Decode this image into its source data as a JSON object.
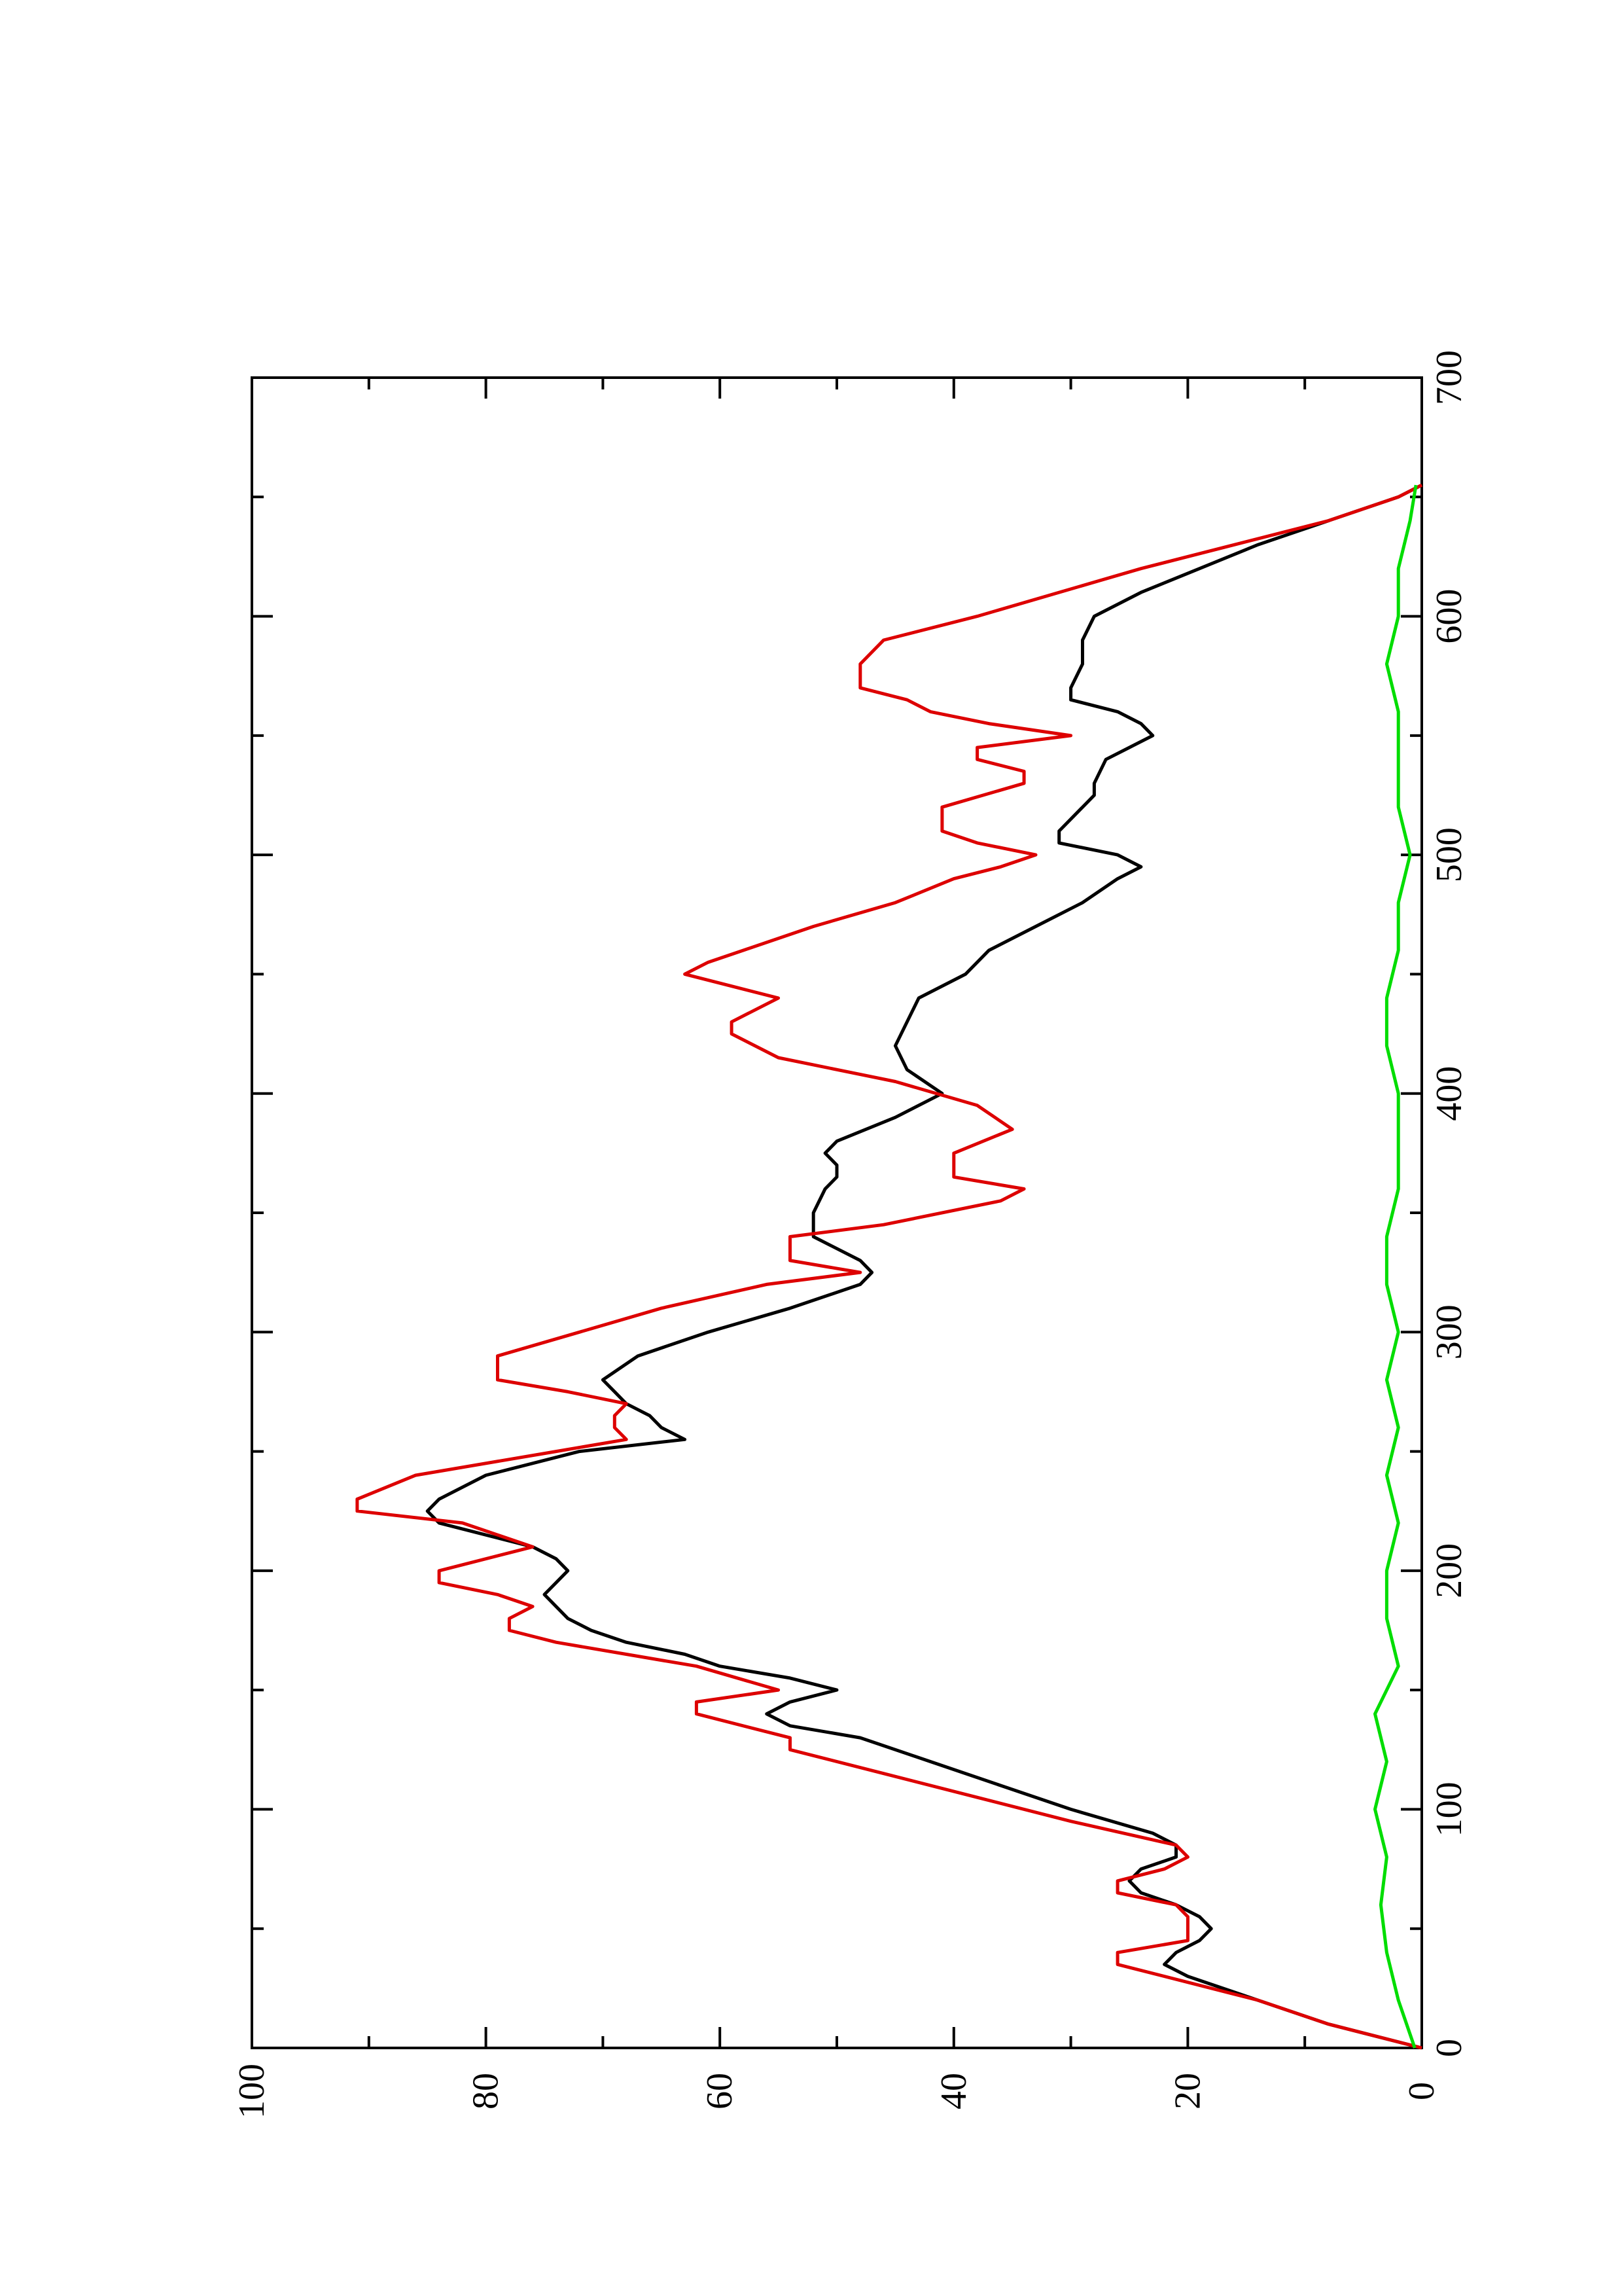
{
  "chart_data": {
    "type": "line",
    "orientation": "rotated 90° counter-clockwise",
    "title": "",
    "xlabel": "",
    "ylabel": "",
    "xlim": [
      0,
      700
    ],
    "ylim": [
      0,
      100
    ],
    "x_ticks": [
      0,
      100,
      200,
      300,
      400,
      500,
      600,
      700
    ],
    "x_tick_labels": [
      "0",
      "100",
      "200",
      "300",
      "400",
      "500",
      "600",
      "700"
    ],
    "y_ticks": [
      0,
      20,
      40,
      60,
      80,
      100
    ],
    "y_tick_labels": [
      "0",
      "20",
      "40",
      "60",
      "80",
      "100"
    ],
    "grid": false,
    "legend": "none",
    "series": [
      {
        "color": "#000000",
        "x": [
          0,
          10,
          20,
          30,
          35,
          40,
          45,
          50,
          55,
          60,
          65,
          70,
          75,
          80,
          85,
          90,
          100,
          110,
          120,
          130,
          135,
          140,
          145,
          150,
          155,
          160,
          165,
          170,
          175,
          180,
          185,
          190,
          195,
          200,
          205,
          210,
          215,
          220,
          225,
          230,
          240,
          250,
          255,
          260,
          265,
          270,
          275,
          280,
          290,
          300,
          310,
          320,
          325,
          330,
          335,
          340,
          350,
          360,
          365,
          370,
          375,
          380,
          390,
          400,
          410,
          420,
          430,
          440,
          450,
          460,
          470,
          480,
          490,
          495,
          500,
          505,
          510,
          520,
          525,
          530,
          540,
          545,
          550,
          555,
          560,
          565,
          570,
          580,
          590,
          600,
          610,
          620,
          630,
          640,
          650,
          655
        ],
        "values": [
          0,
          8,
          14,
          20,
          22,
          21,
          19,
          18,
          19,
          21,
          24,
          25,
          24,
          21,
          21,
          23,
          30,
          36,
          42,
          48,
          54,
          56,
          54,
          50,
          54,
          60,
          63,
          68,
          71,
          73,
          74,
          75,
          74,
          73,
          74,
          76,
          80,
          84,
          85,
          84,
          80,
          72,
          63,
          65,
          66,
          68,
          69,
          70,
          67,
          61,
          54,
          48,
          47,
          48,
          50,
          52,
          52,
          51,
          50,
          50,
          51,
          50,
          45,
          41,
          44,
          45,
          44,
          43,
          39,
          37,
          33,
          29,
          26,
          24,
          26,
          31,
          31,
          29,
          28,
          28,
          27,
          25,
          23,
          24,
          26,
          30,
          30,
          29,
          29,
          28,
          24,
          19,
          14,
          8,
          2,
          0
        ]
      },
      {
        "color": "#dd0000",
        "x": [
          0,
          10,
          20,
          35,
          40,
          45,
          55,
          60,
          65,
          70,
          75,
          80,
          85,
          95,
          105,
          115,
          125,
          130,
          140,
          145,
          150,
          160,
          165,
          170,
          175,
          180,
          185,
          190,
          195,
          200,
          210,
          220,
          225,
          230,
          240,
          250,
          255,
          260,
          265,
          270,
          275,
          280,
          290,
          300,
          310,
          320,
          325,
          330,
          340,
          345,
          355,
          360,
          365,
          375,
          385,
          395,
          405,
          415,
          425,
          430,
          440,
          445,
          450,
          455,
          460,
          470,
          480,
          490,
          495,
          500,
          505,
          510,
          520,
          530,
          535,
          540,
          545,
          550,
          555,
          560,
          565,
          570,
          580,
          590,
          600,
          610,
          620,
          630,
          640,
          650,
          655
        ],
        "values": [
          0,
          8,
          14,
          26,
          26,
          20,
          20,
          21,
          26,
          26,
          22,
          20,
          21,
          30,
          38,
          46,
          54,
          54,
          62,
          62,
          55,
          62,
          68,
          74,
          78,
          78,
          76,
          79,
          84,
          84,
          76,
          82,
          91,
          91,
          86,
          74,
          68,
          69,
          69,
          68,
          73,
          79,
          79,
          72,
          65,
          56,
          48,
          54,
          54,
          46,
          36,
          34,
          40,
          40,
          35,
          38,
          45,
          55,
          59,
          59,
          55,
          59,
          63,
          61,
          58,
          52,
          45,
          40,
          36,
          33,
          38,
          41,
          41,
          34,
          34,
          38,
          38,
          30,
          37,
          42,
          44,
          48,
          48,
          46,
          38,
          31,
          24,
          16,
          8,
          2,
          0
        ]
      },
      {
        "color": "#00dd00",
        "x": [
          0,
          20,
          40,
          60,
          80,
          100,
          120,
          140,
          160,
          180,
          200,
          220,
          240,
          260,
          280,
          300,
          320,
          340,
          360,
          380,
          400,
          420,
          440,
          460,
          480,
          500,
          520,
          540,
          560,
          580,
          600,
          620,
          640,
          655
        ],
        "values": [
          0.6,
          2,
          3,
          3.5,
          3,
          4,
          3,
          4,
          2,
          3,
          3,
          2,
          3,
          2,
          3,
          2,
          3,
          3,
          2,
          2,
          2,
          3,
          3,
          2,
          2,
          1,
          2,
          2,
          2,
          3,
          2,
          2,
          1,
          0.5
        ]
      }
    ]
  }
}
